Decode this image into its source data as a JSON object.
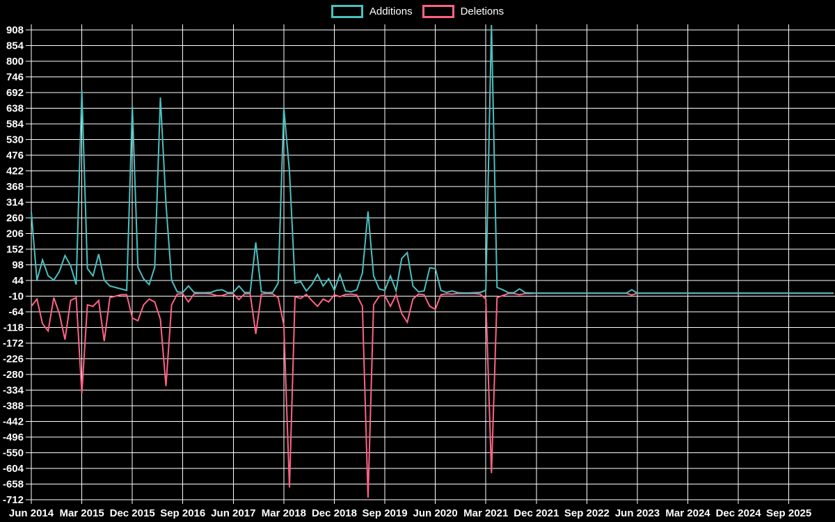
{
  "chart_data": {
    "type": "line",
    "title": "",
    "legend_position": "top",
    "background_color": "#000000",
    "grid_color": "#ffffff",
    "text_color": "#ffffff",
    "grid": true,
    "x_tick_labels": [
      "Jun 2014",
      "Mar 2015",
      "Dec 2015",
      "Sep 2016",
      "Jun 2017",
      "Mar 2018",
      "Dec 2018",
      "Sep 2019",
      "Jun 2020",
      "Mar 2021",
      "Dec 2021",
      "Sep 2022",
      "Jun 2023",
      "Mar 2024",
      "Dec 2024",
      "Sep 2025"
    ],
    "months_per_xtick": 9,
    "x_start": "Jun 2014",
    "point_interval": "monthly",
    "y_ticks": [
      908,
      854,
      800,
      746,
      692,
      638,
      584,
      530,
      476,
      422,
      368,
      314,
      260,
      206,
      152,
      98,
      44,
      -10,
      -64,
      -118,
      -172,
      -226,
      -280,
      -334,
      -388,
      -442,
      -496,
      -550,
      -604,
      -658,
      -712
    ],
    "ylim": [
      -712,
      908
    ],
    "series": [
      {
        "name": "Additions",
        "color": "#4bc0c0",
        "values": [
          280,
          45,
          115,
          60,
          45,
          75,
          130,
          95,
          30,
          700,
          85,
          60,
          135,
          45,
          25,
          20,
          15,
          10,
          645,
          90,
          50,
          30,
          90,
          675,
          310,
          45,
          5,
          3,
          25,
          3,
          2,
          2,
          3,
          10,
          12,
          2,
          3,
          25,
          3,
          2,
          175,
          5,
          2,
          3,
          35,
          640,
          420,
          35,
          40,
          8,
          30,
          65,
          25,
          50,
          10,
          65,
          8,
          5,
          12,
          70,
          282,
          60,
          15,
          10,
          60,
          8,
          120,
          140,
          25,
          5,
          8,
          88,
          85,
          10,
          3,
          8,
          2,
          1,
          1,
          2,
          3,
          10,
          925,
          20,
          12,
          2,
          2,
          15,
          2,
          1,
          0,
          0,
          0,
          0,
          0,
          0,
          0,
          0,
          0,
          0,
          0,
          0,
          0,
          0,
          0,
          0,
          0,
          12,
          0,
          0,
          0,
          0,
          0,
          0,
          0,
          0,
          0,
          0,
          0,
          0,
          0,
          0,
          0,
          0,
          0,
          0,
          0,
          0,
          0,
          0,
          0,
          0,
          0,
          0,
          0,
          0,
          0,
          0,
          0,
          0,
          0,
          0,
          0,
          0
        ]
      },
      {
        "name": "Deletions",
        "color": "#ff6384",
        "values": [
          -45,
          -20,
          -105,
          -130,
          -15,
          -70,
          -160,
          -25,
          -15,
          -345,
          -40,
          -45,
          -25,
          -165,
          -15,
          -10,
          -5,
          -5,
          -85,
          -95,
          -40,
          -20,
          -30,
          -90,
          -320,
          -40,
          -3,
          -2,
          -30,
          -2,
          -1,
          -1,
          -2,
          -8,
          -8,
          -1,
          -2,
          -22,
          -2,
          -1,
          -140,
          -3,
          -1,
          -2,
          -15,
          -110,
          -670,
          -12,
          -18,
          -4,
          -25,
          -45,
          -20,
          -30,
          -5,
          -12,
          -4,
          -3,
          -6,
          -45,
          -705,
          -40,
          -10,
          -8,
          -45,
          -5,
          -70,
          -100,
          -20,
          -3,
          -5,
          -45,
          -55,
          -5,
          -2,
          -3,
          -1,
          -1,
          -1,
          -1,
          -3,
          -20,
          -620,
          -15,
          -8,
          -1,
          -1,
          -5,
          -1,
          -1,
          0,
          0,
          0,
          0,
          0,
          0,
          0,
          0,
          0,
          0,
          0,
          0,
          0,
          0,
          0,
          0,
          0,
          -6,
          0,
          0,
          0,
          0,
          0,
          0,
          0,
          0,
          0,
          0,
          0,
          0,
          0,
          0,
          0,
          0,
          0,
          0,
          0,
          0,
          0,
          0,
          0,
          0,
          0,
          0,
          0,
          0,
          0,
          0,
          0,
          0,
          0,
          0,
          0,
          0
        ]
      }
    ]
  }
}
